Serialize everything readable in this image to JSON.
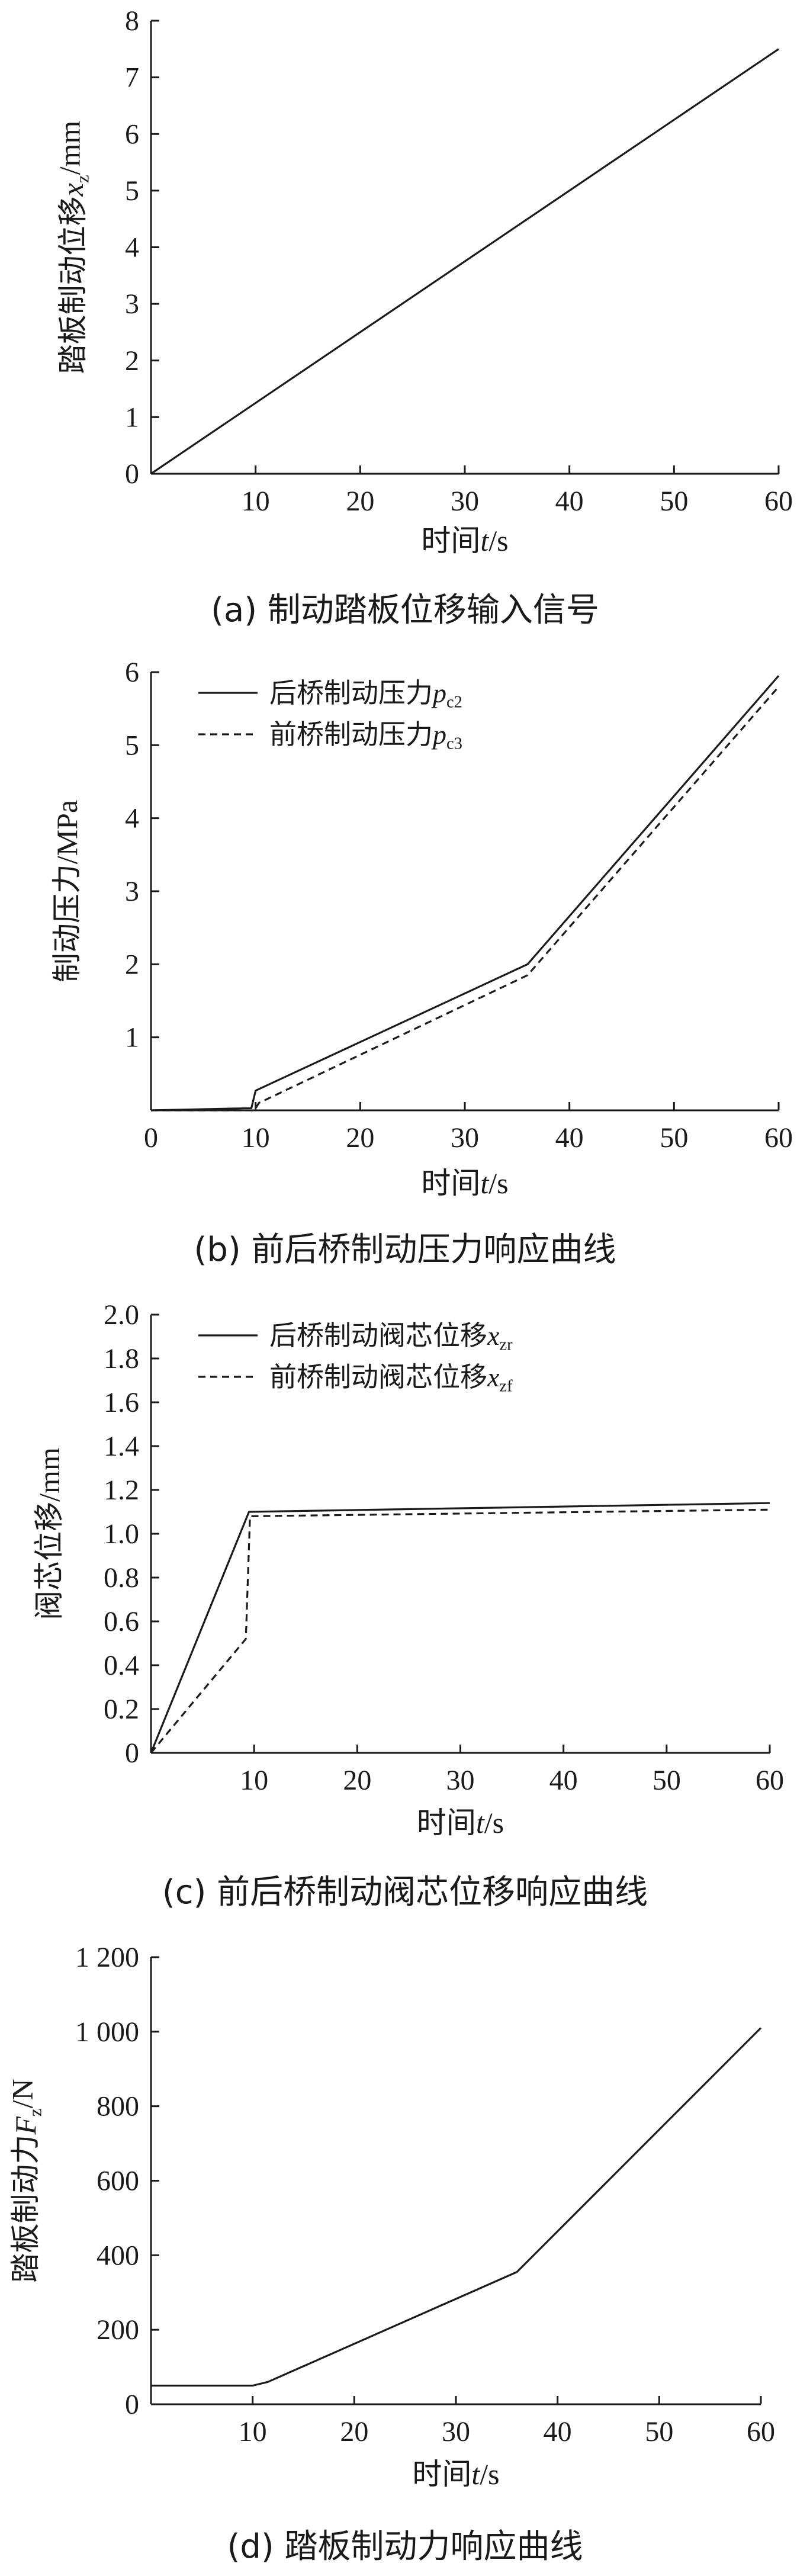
{
  "chart_data": [
    {
      "id": "a",
      "type": "line",
      "caption": "(a)  制动踏板位移输入信号",
      "xlabel": {
        "prefix": "时间",
        "var": "t",
        "sub": "",
        "unit": "/s"
      },
      "ylabel": {
        "prefix": "踏板制动位移",
        "var": "x",
        "sub": "z",
        "unit": "/mm"
      },
      "xlim": [
        0,
        60
      ],
      "ylim": [
        0,
        8
      ],
      "x_ticks": [
        10,
        20,
        30,
        40,
        50,
        60
      ],
      "y_ticks": [
        0,
        1,
        2,
        3,
        4,
        5,
        6,
        7,
        8
      ],
      "x_origin_label": "",
      "y_tick_labels": [
        "0",
        "1",
        "2",
        "3",
        "4",
        "5",
        "6",
        "7",
        "8"
      ],
      "legend": [],
      "series": [
        {
          "style": "solid",
          "x": [
            0,
            60
          ],
          "y": [
            0,
            7.5
          ]
        }
      ]
    },
    {
      "id": "b",
      "type": "line",
      "caption": "(b)  前后桥制动压力响应曲线",
      "xlabel": {
        "prefix": "时间",
        "var": "t",
        "sub": "",
        "unit": "/s"
      },
      "ylabel": {
        "prefix": "制动压力",
        "var": "",
        "sub": "",
        "unit": "/MPa"
      },
      "xlim": [
        0,
        60
      ],
      "ylim": [
        0,
        6
      ],
      "x_ticks": [
        10,
        20,
        30,
        40,
        50,
        60
      ],
      "y_ticks": [
        0,
        1,
        2,
        3,
        4,
        5,
        6
      ],
      "x_origin_label": "0",
      "y_tick_labels": [
        "",
        "1",
        "2",
        "3",
        "4",
        "5",
        "6"
      ],
      "legend": [
        {
          "prefix": "后桥制动压力",
          "var": "p",
          "sub": "c2",
          "style": "solid"
        },
        {
          "prefix": "前桥制动压力",
          "var": "p",
          "sub": "c3",
          "style": "dashed"
        }
      ],
      "series": [
        {
          "name": "后桥制动压力pc2",
          "style": "solid",
          "x": [
            0,
            9.6,
            10,
            36,
            60
          ],
          "y": [
            0,
            0.03,
            0.27,
            2.0,
            5.95
          ]
        },
        {
          "name": "前桥制动压力pc3",
          "style": "dashed",
          "x": [
            0,
            9.9,
            10.3,
            36,
            60
          ],
          "y": [
            0,
            0,
            0.1,
            1.85,
            5.8
          ]
        }
      ]
    },
    {
      "id": "c",
      "type": "line",
      "caption": "(c)  前后桥制动阀芯位移响应曲线",
      "xlabel": {
        "prefix": "时间",
        "var": "t",
        "sub": "",
        "unit": "/s"
      },
      "ylabel": {
        "prefix": "阀芯位移",
        "var": "",
        "sub": "",
        "unit": "/mm"
      },
      "xlim": [
        0,
        60
      ],
      "ylim": [
        0,
        2.0
      ],
      "x_ticks": [
        10,
        20,
        30,
        40,
        50,
        60
      ],
      "y_ticks": [
        0,
        0.2,
        0.4,
        0.6,
        0.8,
        1.0,
        1.2,
        1.4,
        1.6,
        1.8,
        2.0
      ],
      "x_origin_label": "",
      "y_tick_labels": [
        "0",
        "0.2",
        "0.4",
        "0.6",
        "0.8",
        "1.0",
        "1.2",
        "1.4",
        "1.6",
        "1.8",
        "2.0"
      ],
      "legend": [
        {
          "prefix": "后桥制动阀芯位移",
          "var": "x",
          "sub": "zr",
          "style": "solid"
        },
        {
          "prefix": "前桥制动阀芯位移",
          "var": "x",
          "sub": "zf",
          "style": "dashed"
        }
      ],
      "series": [
        {
          "name": "后桥制动阀芯位移xzr",
          "style": "solid",
          "x": [
            0,
            9.5,
            60
          ],
          "y": [
            0,
            1.1,
            1.14
          ]
        },
        {
          "name": "前桥制动阀芯位移xzf",
          "style": "dashed",
          "x": [
            0,
            9.2,
            9.6,
            60
          ],
          "y": [
            0,
            0.52,
            1.08,
            1.11
          ]
        }
      ]
    },
    {
      "id": "d",
      "type": "line",
      "caption": "(d)  踏板制动力响应曲线",
      "xlabel": {
        "prefix": "时间",
        "var": "t",
        "sub": "",
        "unit": "/s"
      },
      "ylabel": {
        "prefix": "踏板制动力",
        "var": "F",
        "sub": "z",
        "unit": "/N"
      },
      "xlim": [
        0,
        60
      ],
      "ylim": [
        0,
        1200
      ],
      "x_ticks": [
        10,
        20,
        30,
        40,
        50,
        60
      ],
      "y_ticks": [
        0,
        200,
        400,
        600,
        800,
        1000,
        1200
      ],
      "x_origin_label": "",
      "y_tick_labels": [
        "0",
        "200",
        "400",
        "600",
        "800",
        "1 000",
        "1 200"
      ],
      "legend": [],
      "series": [
        {
          "style": "solid",
          "x": [
            0,
            10,
            11.5,
            36,
            60
          ],
          "y": [
            50,
            50,
            60,
            355,
            1010
          ]
        }
      ]
    }
  ]
}
